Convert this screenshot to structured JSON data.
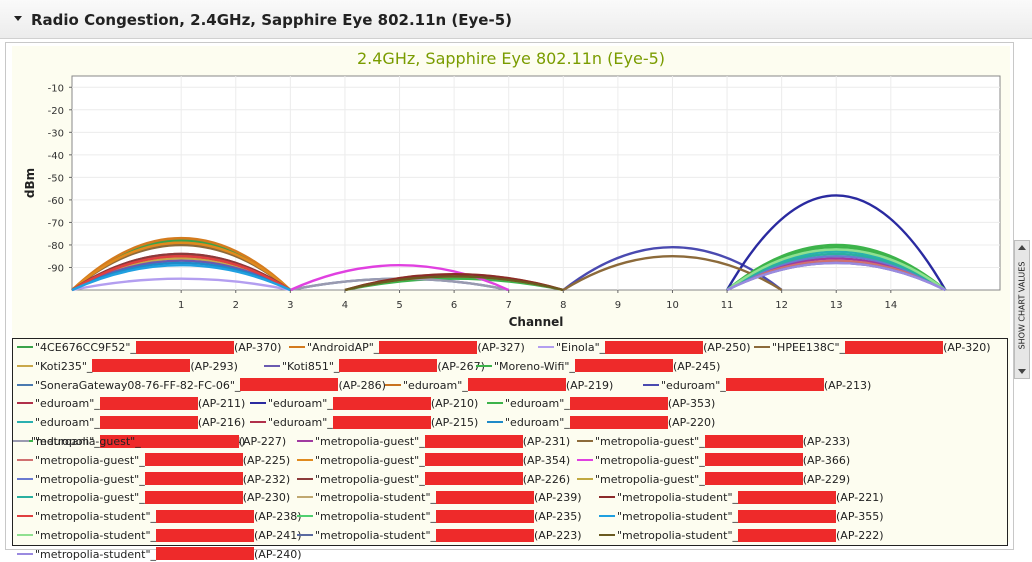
{
  "header": {
    "title": "Radio Congestion, 2.4GHz, Sapphire Eye 802.11n (Eye-5)"
  },
  "side_tab": {
    "label": "SHOW CHART VALUES"
  },
  "chart_data": {
    "type": "line",
    "title": "2.4GHz, Sapphire Eye 802.11n (Eye-5)",
    "xlabel": "Channel",
    "ylabel": "dBm",
    "xlim": [
      -1,
      16
    ],
    "ylim": [
      -100,
      -5
    ],
    "x_ticks": [
      1,
      2,
      3,
      4,
      5,
      6,
      7,
      8,
      9,
      10,
      11,
      12,
      13,
      14
    ],
    "y_ticks": [
      -10,
      -20,
      -30,
      -40,
      -50,
      -60,
      -70,
      -80,
      -90
    ],
    "grid": true,
    "legend_position": "bottom",
    "baseline_dbm": -100,
    "series": [
      {
        "name": "\"4CE676CC9F52\"_",
        "id": "(AP-370)",
        "color": "#3aa34a",
        "channel": 1,
        "peak": -78
      },
      {
        "name": "\"AndroidAP\"_",
        "id": "(AP-327)",
        "color": "#d47b1e",
        "channel": 1,
        "peak": -77
      },
      {
        "name": "\"Einola\"_",
        "id": "(AP-250)",
        "color": "#b39ef0",
        "channel": 1,
        "peak": -95
      },
      {
        "name": "\"HPEE138C\"_",
        "id": "(AP-320)",
        "color": "#8c6a3a",
        "channel": 1,
        "peak": -80
      },
      {
        "name": "\"Koti235\"_",
        "id": "(AP-293)",
        "color": "#c9a84a",
        "channel": 1,
        "peak": -86
      },
      {
        "name": "\"Koti851\"_",
        "id": "(AP-267)",
        "color": "#6a5ab0",
        "channel": 1,
        "peak": -87
      },
      {
        "name": "\"Moreno-Wifi\"_",
        "id": "(AP-245)",
        "color": "#3cb34a",
        "channel": 6,
        "peak": -95
      },
      {
        "name": "\"SoneraGateway08-76-FF-82-FC-06\"_",
        "id": "(AP-286)",
        "color": "#4a7ab0",
        "channel": 5,
        "peak": -95
      },
      {
        "name": "\"eduroam\"_",
        "id": "(AP-219)",
        "color": "#c8721e",
        "channel": 1,
        "peak": -79
      },
      {
        "name": "\"eduroam\"_",
        "id": "(AP-213)",
        "color": "#4a4ab0",
        "channel": 10,
        "peak": -81
      },
      {
        "name": "\"eduroam\"_",
        "id": "(AP-211)",
        "color": "#b0304a",
        "channel": 1,
        "peak": -84
      },
      {
        "name": "\"eduroam\"_",
        "id": "(AP-210)",
        "color": "#2a2aa0",
        "channel": 13,
        "peak": -58
      },
      {
        "name": "\"eduroam\"_",
        "id": "(AP-353)",
        "color": "#3cb34a",
        "channel": 13,
        "peak": -80
      },
      {
        "name": "\"eduroam\"_",
        "id": "(AP-216)",
        "color": "#2ab0b0",
        "channel": 13,
        "peak": -83
      },
      {
        "name": "\"eduroam\"_",
        "id": "(AP-215)",
        "color": "#b0304a",
        "channel": 1,
        "peak": -85
      },
      {
        "name": "\"eduroam\"_",
        "id": "(AP-220)",
        "color": "#1e8ac8",
        "channel": 1,
        "peak": -88
      },
      {
        "name": "\"eduroam\"_",
        "id": "(AP-214)",
        "color": "#3cb34a",
        "channel": 13,
        "peak": -81
      },
      {
        "name": "\"metropolia-guest\"_",
        "id": "(AP-231)",
        "color": "#a03aa0",
        "channel": 13,
        "peak": -86
      },
      {
        "name": "\"metropolia-guest\"_",
        "id": "(AP-233)",
        "color": "#8c6a3a",
        "channel": 10,
        "peak": -85
      },
      {
        "name": "\"metropolia-guest\"_",
        "id": "(AP-227)",
        "color": "#9a9ab0",
        "channel": 5,
        "peak": -95
      },
      {
        "name": "\"metropolia-guest\"_",
        "id": "(AP-225)",
        "color": "#d07070",
        "channel": 13,
        "peak": -87
      },
      {
        "name": "\"metropolia-guest\"_",
        "id": "(AP-354)",
        "color": "#e08a1e",
        "channel": 1,
        "peak": -79
      },
      {
        "name": "\"metropolia-guest\"_",
        "id": "(AP-366)",
        "color": "#e040e0",
        "channel": 5,
        "peak": -89
      },
      {
        "name": "\"metropolia-guest\"_",
        "id": "(AP-232)",
        "color": "#6a7ad0",
        "channel": 13,
        "peak": -85
      },
      {
        "name": "\"metropolia-guest\"_",
        "id": "(AP-226)",
        "color": "#8c3a3a",
        "channel": 1,
        "peak": -84
      },
      {
        "name": "\"metropolia-guest\"_",
        "id": "(AP-229)",
        "color": "#c0a840",
        "channel": 6,
        "peak": -93
      },
      {
        "name": "\"metropolia-guest\"_",
        "id": "(AP-230)",
        "color": "#2ab0a0",
        "channel": 13,
        "peak": -84
      },
      {
        "name": "\"metropolia-student\"_",
        "id": "(AP-239)",
        "color": "#c0a870",
        "channel": 6,
        "peak": -94
      },
      {
        "name": "\"metropolia-student\"_",
        "id": "(AP-221)",
        "color": "#8c2a2a",
        "channel": 6,
        "peak": -93
      },
      {
        "name": "\"metropolia-student\"_",
        "id": "(AP-238)",
        "color": "#e04040",
        "channel": 1,
        "peak": -85
      },
      {
        "name": "\"metropolia-student\"_",
        "id": "(AP-235)",
        "color": "#50d070",
        "channel": 13,
        "peak": -82
      },
      {
        "name": "\"metropolia-student\"_",
        "id": "(AP-355)",
        "color": "#20a0e0",
        "channel": 1,
        "peak": -89
      },
      {
        "name": "\"metropolia-student\"_",
        "id": "(AP-241)",
        "color": "#90e090",
        "channel": 13,
        "peak": -82
      },
      {
        "name": "\"metropolia-student\"_",
        "id": "(AP-223)",
        "color": "#5a6aa0",
        "channel": 13,
        "peak": -88
      },
      {
        "name": "\"metropolia-student\"_",
        "id": "(AP-222)",
        "color": "#6a5a20",
        "channel": 6,
        "peak": -94
      },
      {
        "name": "\"metropolia-student\"_",
        "id": "(AP-240)",
        "color": "#9a8ae0",
        "channel": 13,
        "peak": -88
      }
    ]
  }
}
